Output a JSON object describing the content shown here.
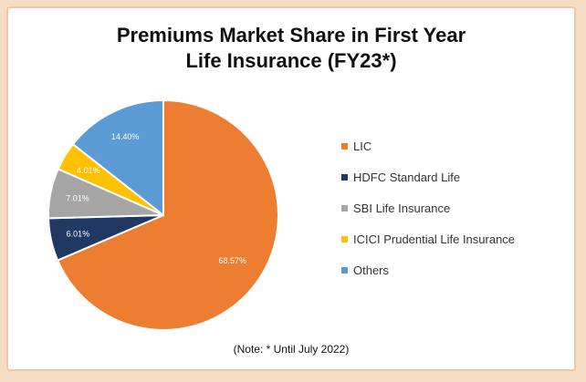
{
  "chart_data": {
    "type": "pie",
    "title_line1": "Premiums Market Share in First Year",
    "title_line2": "Life Insurance (FY23*)",
    "note": "(Note: * Until July 2022)",
    "categories": [
      "LIC",
      "HDFC Standard Life",
      "SBI Life Insurance",
      "ICICI Prudential Life Insurance",
      "Others"
    ],
    "values": [
      68.57,
      6.01,
      7.01,
      4.01,
      14.4
    ],
    "value_labels": [
      "68.57%",
      "6.01%",
      "7.01%",
      "4.01%",
      "14.40%"
    ],
    "colors": [
      "#ed7d31",
      "#1f3864",
      "#a5a5a5",
      "#ffc000",
      "#5b9bd5"
    ],
    "legend_position": "right",
    "start_angle_deg": 0,
    "direction": "clockwise"
  }
}
